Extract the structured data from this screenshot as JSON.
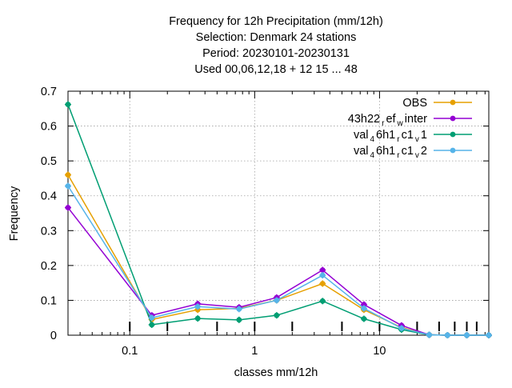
{
  "chart_data": {
    "type": "line",
    "title_lines": [
      "Frequency  for 12h Precipitation (mm/12h)",
      "Selection: Denmark      24 stations",
      "Period: 20230101-20230131",
      "Used  00,06,12,18  + 12 15 ... 48"
    ],
    "xlabel": "classes mm/12h",
    "ylabel": "Frequency",
    "x_scale": "log",
    "xlim": [
      0.032,
      75
    ],
    "ylim": [
      0,
      0.7
    ],
    "grid": true,
    "legend_position": "top-right",
    "x_ticks": [
      {
        "value": 0.1,
        "label": "0.1"
      },
      {
        "value": 1,
        "label": "1"
      },
      {
        "value": 10,
        "label": "10"
      }
    ],
    "y_ticks": [
      {
        "value": 0,
        "label": "0"
      },
      {
        "value": 0.1,
        "label": "0.1"
      },
      {
        "value": 0.2,
        "label": "0.2"
      },
      {
        "value": 0.3,
        "label": "0.3"
      },
      {
        "value": 0.4,
        "label": "0.4"
      },
      {
        "value": 0.5,
        "label": "0.5"
      },
      {
        "value": 0.6,
        "label": "0.6"
      },
      {
        "value": 0.7,
        "label": "0.7"
      }
    ],
    "class_markers": [
      0.1,
      0.2,
      0.5,
      1,
      2,
      5,
      10,
      20,
      30,
      40,
      50,
      60
    ],
    "x": [
      0.032,
      0.15,
      0.35,
      0.75,
      1.5,
      3.5,
      7.5,
      15,
      25,
      35,
      50,
      75
    ],
    "series": [
      {
        "name": "OBS",
        "name_parts": [
          [
            "OBS",
            ""
          ]
        ],
        "color": "#e6a000",
        "values": [
          0.46,
          0.045,
          0.073,
          0.077,
          0.1,
          0.148,
          0.073,
          0.022,
          0.001,
          0.0,
          0.0,
          0.0
        ]
      },
      {
        "name": "43h22_ref_winter",
        "name_parts": [
          [
            "43h22",
            ""
          ],
          [
            "r",
            "sub"
          ],
          [
            "ef",
            ""
          ],
          [
            "w",
            "sub"
          ],
          [
            "inter",
            ""
          ]
        ],
        "color": "#9400d3",
        "values": [
          0.366,
          0.057,
          0.09,
          0.08,
          0.108,
          0.187,
          0.088,
          0.028,
          0.001,
          0.0,
          0.0,
          0.0
        ]
      },
      {
        "name": "val_46h1_rc1_v1",
        "name_parts": [
          [
            "val",
            ""
          ],
          [
            "4",
            "sub"
          ],
          [
            "6h1",
            ""
          ],
          [
            "r",
            "sub"
          ],
          [
            "c1",
            ""
          ],
          [
            "v",
            "sub"
          ],
          [
            "1",
            ""
          ]
        ],
        "color": "#009e73",
        "values": [
          0.662,
          0.03,
          0.048,
          0.044,
          0.057,
          0.098,
          0.047,
          0.016,
          0.001,
          0.0,
          0.0,
          0.0
        ]
      },
      {
        "name": "val_46h1_rc1_v2",
        "name_parts": [
          [
            "val",
            ""
          ],
          [
            "4",
            "sub"
          ],
          [
            "6h1",
            ""
          ],
          [
            "r",
            "sub"
          ],
          [
            "c1",
            ""
          ],
          [
            "v",
            "sub"
          ],
          [
            "2",
            ""
          ]
        ],
        "color": "#56b4e9",
        "values": [
          0.428,
          0.05,
          0.082,
          0.075,
          0.1,
          0.172,
          0.077,
          0.02,
          0.001,
          0.0,
          0.0,
          0.0
        ]
      }
    ]
  }
}
